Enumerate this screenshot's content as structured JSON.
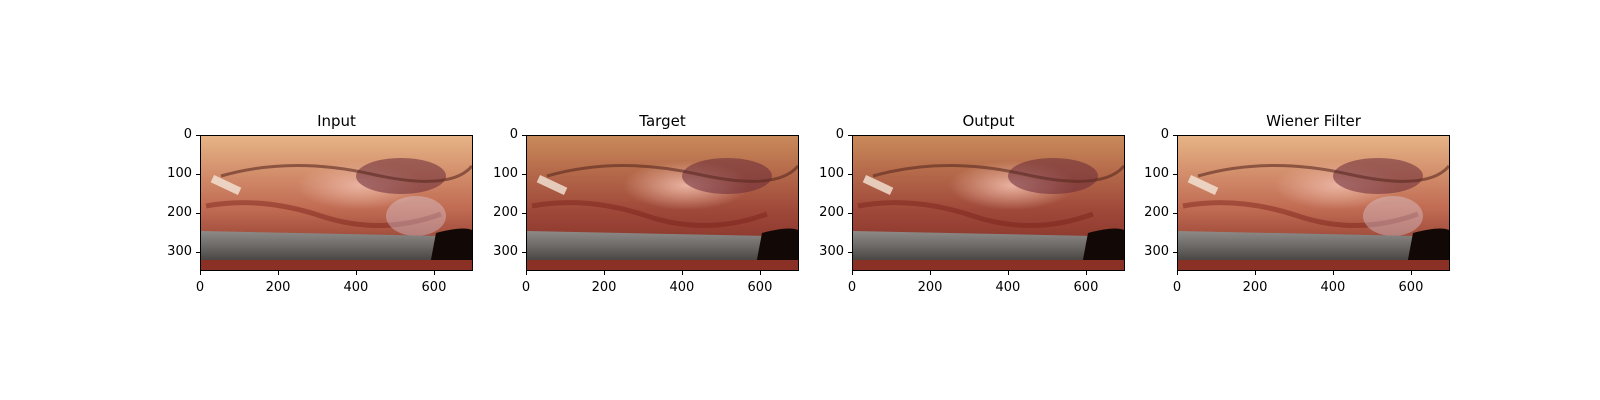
{
  "panels": [
    {
      "title": "Input",
      "variant": "input"
    },
    {
      "title": "Target",
      "variant": "target"
    },
    {
      "title": "Output",
      "variant": "output"
    },
    {
      "title": "Wiener Filter",
      "variant": "wiener"
    }
  ],
  "axes": {
    "y_ticks": [
      "0",
      "100",
      "200",
      "300"
    ],
    "x_ticks": [
      "0",
      "200",
      "400",
      "600"
    ]
  },
  "colors": {
    "tissue_light": "#e8b080",
    "tissue_dark": "#8a2a20",
    "instrument": "#6e6a68"
  }
}
